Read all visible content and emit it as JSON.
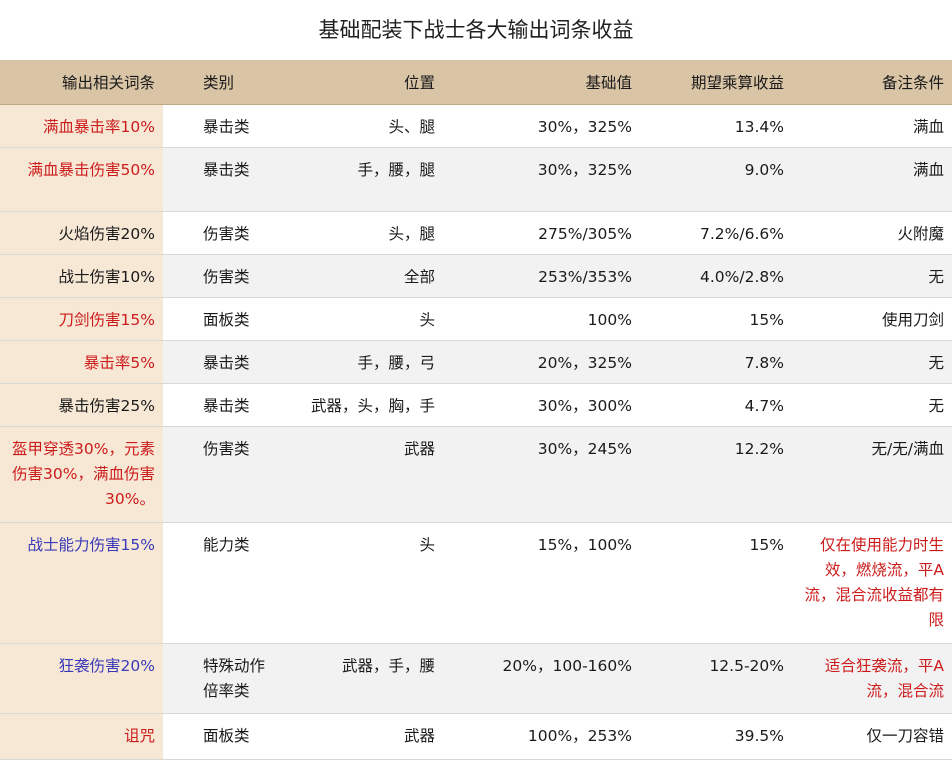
{
  "title": "基础配装下战士各大输出词条收益",
  "headers": [
    "输出相关词条",
    "类别",
    "位置",
    "基础值",
    "期望乘算收益",
    "备注条件"
  ],
  "colors": {
    "red": "#cc1b1b",
    "blue": "#3a3ab8",
    "header": "#d9c4a6",
    "first_col": "#f7e8d6"
  },
  "rows": [
    {
      "affix": "满血暴击率10%",
      "affix_color": "red",
      "category": "暴击类",
      "position": "头、腿",
      "base": "30%，325%",
      "gain": "13.4%",
      "note": "满血",
      "note_color": "black"
    },
    {
      "affix": "满血暴击伤害50%",
      "affix_color": "red",
      "category": "暴击类",
      "position": "手，腰，腿",
      "base": "30%，325%",
      "gain": "9.0%",
      "note": "满血",
      "note_color": "black"
    },
    {
      "affix": "火焰伤害20%",
      "affix_color": "black",
      "category": "伤害类",
      "position": "头，腿",
      "base": "275%/305%",
      "gain": "7.2%/6.6%",
      "note": "火附魔",
      "note_color": "black"
    },
    {
      "affix": "战士伤害10%",
      "affix_color": "black",
      "category": "伤害类",
      "position": "全部",
      "base": "253%/353%",
      "gain": "4.0%/2.8%",
      "note": "无",
      "note_color": "black"
    },
    {
      "affix": "刀剑伤害15%",
      "affix_color": "red",
      "category": "面板类",
      "position": "头",
      "base": "100%",
      "gain": "15%",
      "note": "使用刀剑",
      "note_color": "black"
    },
    {
      "affix": "暴击率5%",
      "affix_color": "red",
      "category": "暴击类",
      "position": "手，腰，弓",
      "base": "20%，325%",
      "gain": "7.8%",
      "note": "无",
      "note_color": "black"
    },
    {
      "affix": "暴击伤害25%",
      "affix_color": "black",
      "category": "暴击类",
      "position": "武器，头，胸，手",
      "base": "30%，300%",
      "gain": "4.7%",
      "note": "无",
      "note_color": "black"
    },
    {
      "affix": "盔甲穿透30%，元素伤害30%，满血伤害30%。",
      "affix_color": "red",
      "category": "伤害类",
      "position": "武器",
      "base": "30%，245%",
      "gain": "12.2%",
      "note": "无/无/满血",
      "note_color": "black"
    },
    {
      "affix": "战士能力伤害15%",
      "affix_color": "blue",
      "category": "能力类",
      "position": "头",
      "base": "15%，100%",
      "gain": "15%",
      "note": "仅在使用能力时生效，燃烧流，平A流，混合流收益都有限",
      "note_color": "red"
    },
    {
      "affix": "狂袭伤害20%",
      "affix_color": "blue",
      "category": "特殊动作倍率类",
      "position": "武器，手，腰",
      "base": "20%，100-160%",
      "gain": "12.5-20%",
      "note": "适合狂袭流，平A流，混合流",
      "note_color": "red"
    },
    {
      "affix": "诅咒",
      "affix_color": "red",
      "category": "面板类",
      "position": "武器",
      "base": "100%，253%",
      "gain": "39.5%",
      "note": "仅一刀容错",
      "note_color": "black"
    }
  ]
}
